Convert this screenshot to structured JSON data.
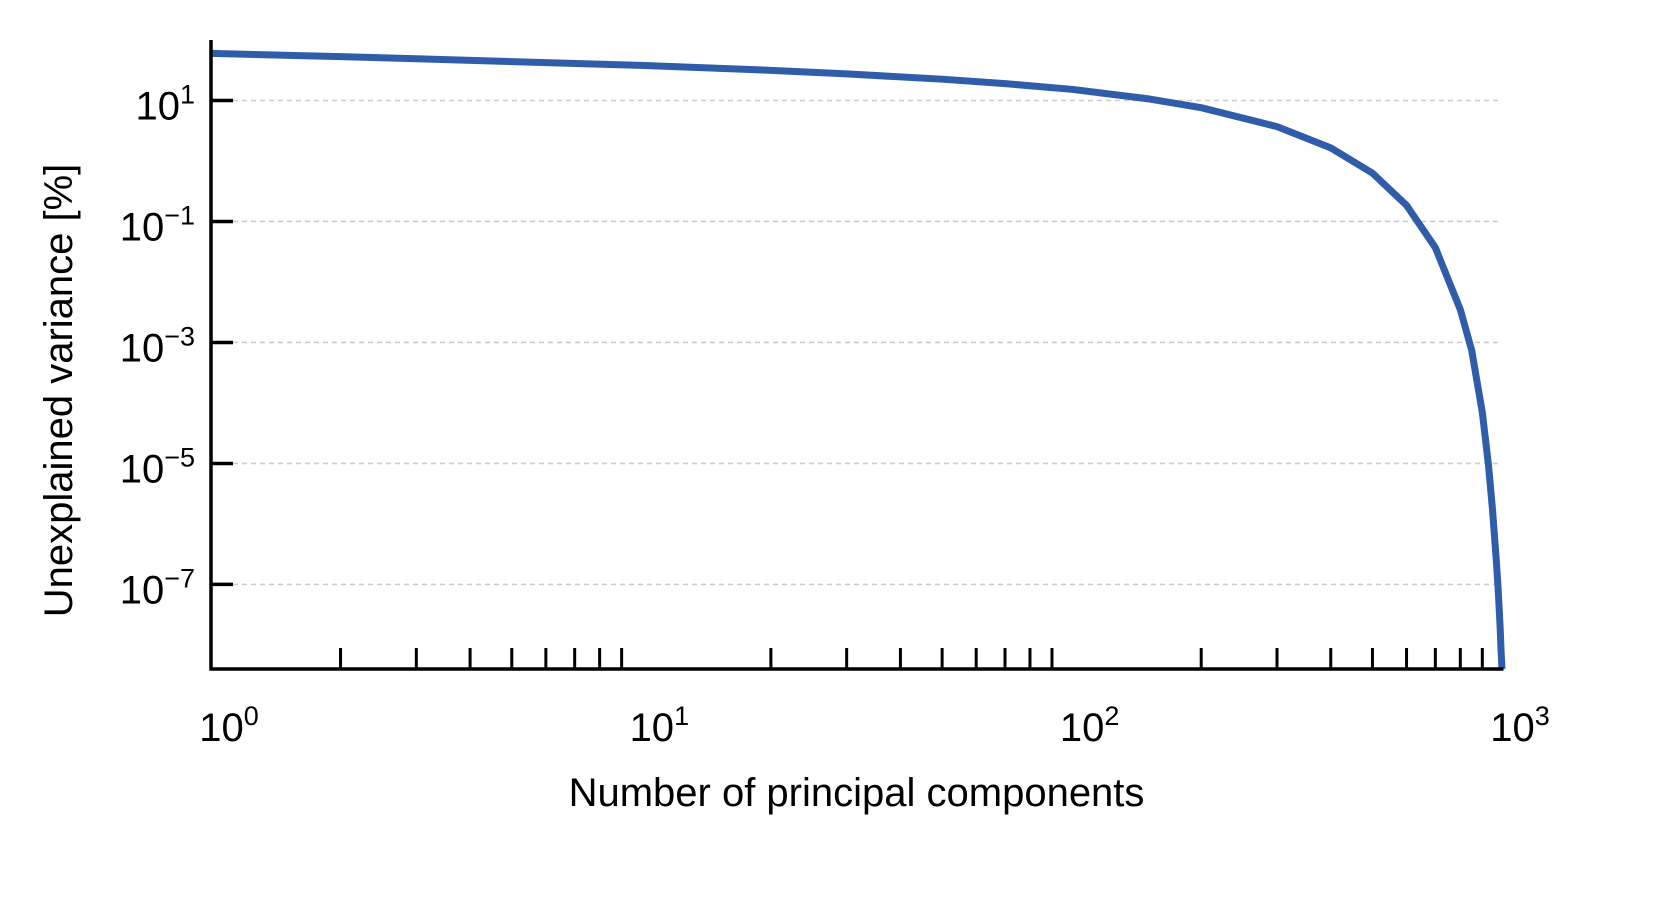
{
  "chart_data": {
    "type": "line",
    "title": "",
    "xlabel": "Number of principal components",
    "ylabel": "Unexplained variance [%]",
    "xscale": "log",
    "yscale": "log",
    "xlim": [
      1,
      1000
    ],
    "ylim": [
      4e-09,
      100
    ],
    "grid": {
      "x": false,
      "y": true,
      "style": "dashed"
    },
    "legend": "none",
    "colors": {
      "line": "#2f5daa",
      "grid": "#cccccc",
      "axis": "#000000"
    },
    "x_ticks": [
      {
        "value": 1,
        "base": "10",
        "exp": "0"
      },
      {
        "value": 10,
        "base": "10",
        "exp": "1"
      },
      {
        "value": 100,
        "base": "10",
        "exp": "2"
      },
      {
        "value": 1000,
        "base": "10",
        "exp": "3"
      }
    ],
    "y_ticks": [
      {
        "value": 10,
        "base": "10",
        "exp": "1"
      },
      {
        "value": 0.1,
        "base": "10",
        "exp": "−1"
      },
      {
        "value": 0.001,
        "base": "10",
        "exp": "−3"
      },
      {
        "value": 1e-05,
        "base": "10",
        "exp": "−5"
      },
      {
        "value": 1e-07,
        "base": "10",
        "exp": "−7"
      }
    ],
    "series": [
      {
        "x": [
          1,
          2,
          3,
          5,
          10,
          20,
          30,
          50,
          70,
          100,
          150,
          200,
          300,
          400,
          500,
          600,
          700,
          800,
          850,
          900,
          930,
          950,
          970,
          980,
          990,
          995,
          1000
        ],
        "y": [
          60,
          53,
          49,
          44,
          38,
          31.5,
          27.5,
          22.5,
          19,
          15.3,
          10.7,
          7.6,
          3.7,
          1.65,
          0.63,
          0.185,
          0.037,
          0.0035,
          0.00075,
          7e-05,
          9.5e-06,
          1.8e-06,
          2.5e-07,
          8e-08,
          2e-08,
          8e-09,
          4e-09
        ]
      }
    ]
  }
}
